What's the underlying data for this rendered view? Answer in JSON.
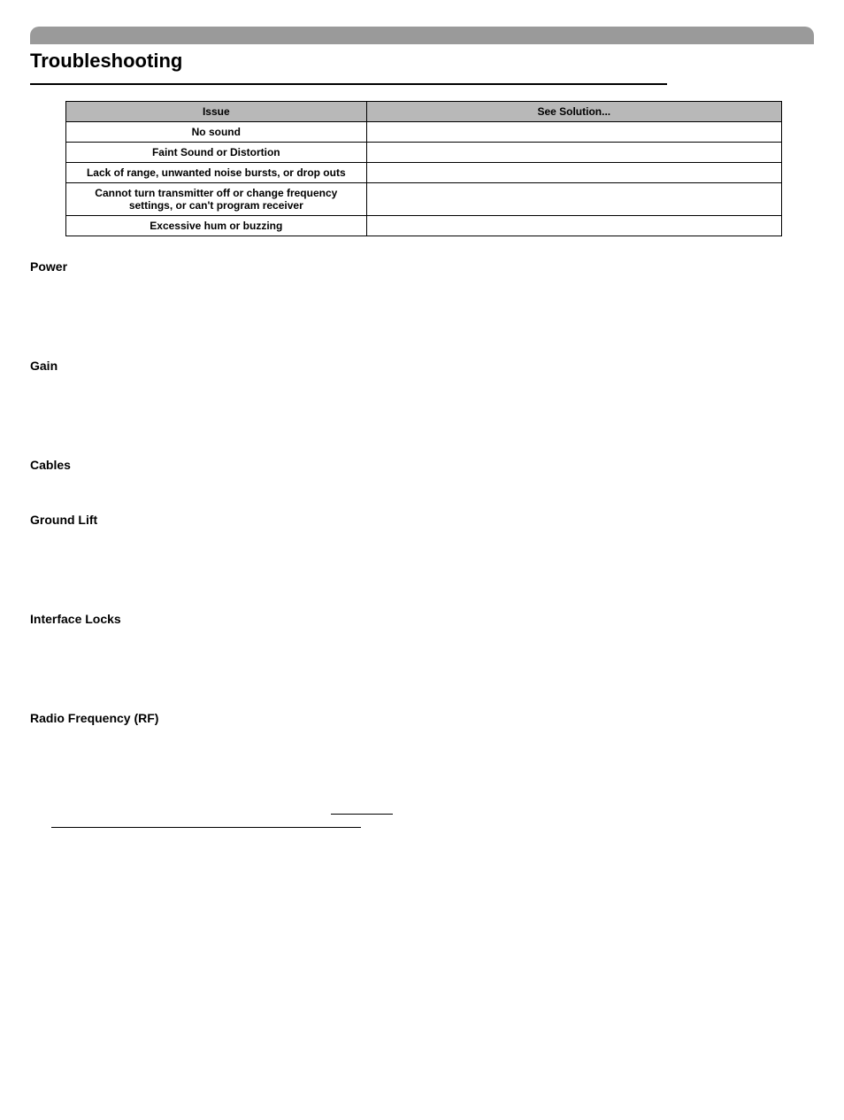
{
  "page": {
    "title": "Troubleshooting",
    "background_color": "#ffffff",
    "topbar_color": "#9a9a9a",
    "text_color": "#000000"
  },
  "table": {
    "header_bg": "#b8b8b8",
    "border_color": "#000000",
    "columns": [
      "Issue",
      "See Solution..."
    ],
    "rows": [
      {
        "issue": "No sound",
        "solution": ""
      },
      {
        "issue": "Faint Sound or Distortion",
        "solution": ""
      },
      {
        "issue": "Lack of range, unwanted noise bursts, or drop outs",
        "solution": ""
      },
      {
        "issue": "Cannot turn transmitter off or change frequency settings, or can't program receiver",
        "solution": ""
      },
      {
        "issue": "Excessive hum or buzzing",
        "solution": ""
      }
    ]
  },
  "sections": {
    "power": "Power",
    "gain": "Gain",
    "cables": "Cables",
    "ground_lift": "Ground Lift",
    "interface_locks": "Interface Locks",
    "rf": "Radio Frequency (RF)"
  }
}
